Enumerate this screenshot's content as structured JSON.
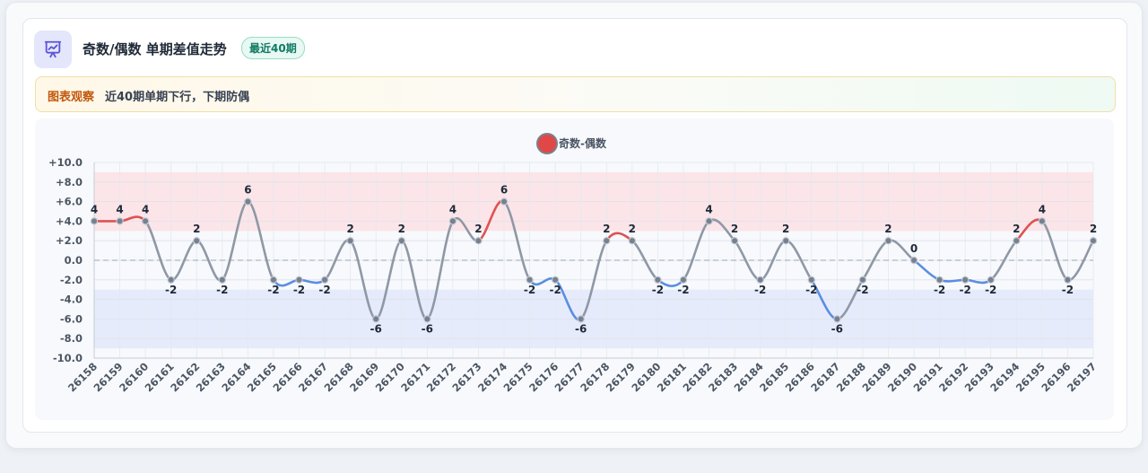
{
  "header": {
    "title": "奇数/偶数 单期差值走势",
    "badge": "最近40期",
    "icon": "presentation-chart-icon"
  },
  "note": {
    "label": "图表观察",
    "text": "近40期单期下行，下期防偶"
  },
  "colors": {
    "accent": "#5b55d6",
    "up": "#e05252",
    "down": "#5b8ee0",
    "flat": "#8f98a6",
    "point": "#76808e",
    "band_high": "#fbe2e4",
    "band_low": "#e3e9fa",
    "legend_dot": "#e04848"
  },
  "chart_data": {
    "type": "line",
    "title": "",
    "xlabel": "",
    "ylabel": "",
    "legend": [
      "奇数-偶数"
    ],
    "legend_position": "top-center",
    "grid": true,
    "ylim": [
      -10,
      10
    ],
    "y_ticks": [
      "+10.0",
      "+8.0",
      "+6.0",
      "+4.0",
      "+2.0",
      "0.0",
      "-2.0",
      "-4.0",
      "-6.0",
      "-8.0",
      "-10.0"
    ],
    "y_tick_values": [
      10,
      8,
      6,
      4,
      2,
      0,
      -2,
      -4,
      -6,
      -8,
      -10
    ],
    "bands": [
      {
        "from": 3,
        "to": 9,
        "tone": "high"
      },
      {
        "from": -9,
        "to": -3,
        "tone": "low"
      }
    ],
    "zero_line": true,
    "x": [
      "26158",
      "26159",
      "26160",
      "26161",
      "26162",
      "26163",
      "26164",
      "26165",
      "26166",
      "26167",
      "26168",
      "26169",
      "26170",
      "26171",
      "26172",
      "26173",
      "26174",
      "26175",
      "26176",
      "26177",
      "26178",
      "26179",
      "26180",
      "26181",
      "26182",
      "26183",
      "26184",
      "26185",
      "26186",
      "26187",
      "26188",
      "26189",
      "26190",
      "26191",
      "26192",
      "26193",
      "26194",
      "26195",
      "26196",
      "26197"
    ],
    "series": [
      {
        "name": "奇数-偶数",
        "values": [
          4,
          4,
          4,
          -2,
          2,
          -2,
          6,
          -2,
          -2,
          -2,
          2,
          -6,
          2,
          -6,
          4,
          2,
          6,
          -2,
          -2,
          -6,
          2,
          2,
          -2,
          -2,
          4,
          2,
          -2,
          2,
          -2,
          -6,
          -2,
          2,
          0,
          -2,
          -2,
          -2,
          2,
          4,
          -2,
          2
        ]
      }
    ]
  }
}
